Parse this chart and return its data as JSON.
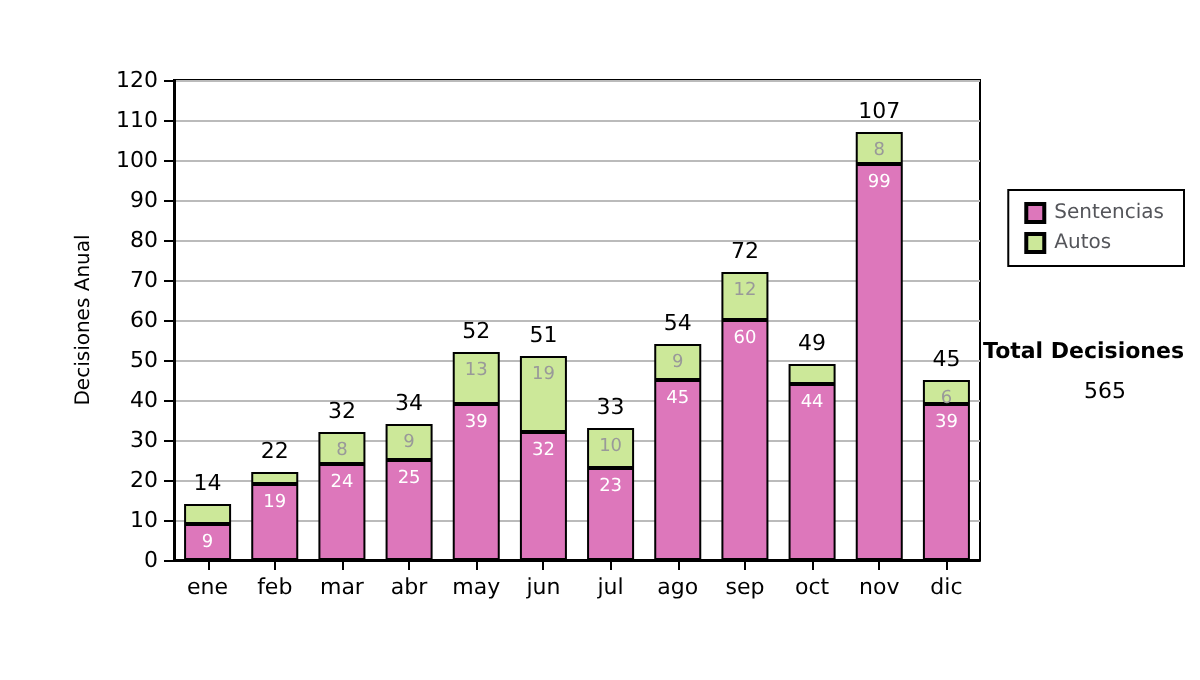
{
  "chart_data": {
    "type": "bar",
    "stacked": true,
    "ylabel": "Decisiones Anual",
    "categories": [
      "ene",
      "feb",
      "mar",
      "abr",
      "may",
      "jun",
      "jul",
      "ago",
      "sep",
      "oct",
      "nov",
      "dic"
    ],
    "series": [
      {
        "name": "Sentencias",
        "color": "#dd77bb",
        "values": [
          9,
          19,
          24,
          25,
          39,
          32,
          23,
          45,
          60,
          44,
          99,
          39
        ],
        "value_labels": [
          "9",
          "19",
          "24",
          "25",
          "39",
          "32",
          "23",
          "45",
          "60",
          "44",
          "99",
          "39"
        ]
      },
      {
        "name": "Autos",
        "color": "#cce899",
        "values": [
          5,
          3,
          8,
          9,
          13,
          19,
          10,
          9,
          12,
          5,
          8,
          6
        ],
        "value_labels": [
          null,
          null,
          "8",
          "9",
          "13",
          "19",
          "10",
          "9",
          "12",
          null,
          "8",
          "6"
        ]
      }
    ],
    "totals": [
      "14",
      "22",
      "32",
      "34",
      "52",
      "51",
      "33",
      "54",
      "72",
      "49",
      "107",
      "45"
    ],
    "ylim": [
      0,
      120
    ],
    "yticks": [
      0,
      10,
      20,
      30,
      40,
      50,
      60,
      70,
      80,
      90,
      100,
      110,
      120
    ],
    "grid": "y",
    "legend": "right",
    "annotations": [
      "Total Decisiones",
      "565"
    ]
  }
}
